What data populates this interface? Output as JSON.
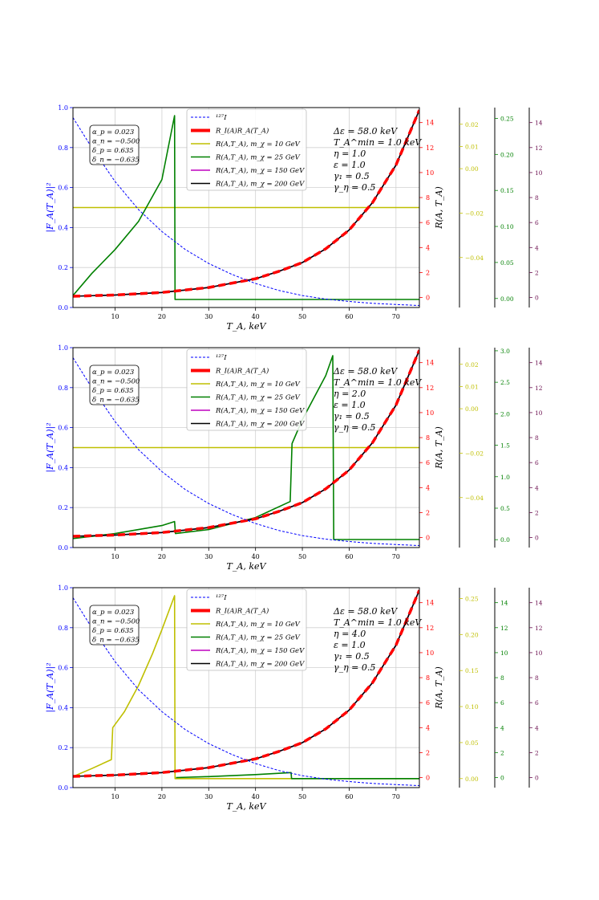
{
  "figure": {
    "legend_labels": [
      "¹²⁷I",
      "R_I(A)R_A(T_A)",
      "R(A,T_A), m_χ = 10 GeV",
      "R(A,T_A), m_χ = 25 GeV",
      "R(A,T_A), m_χ = 150 GeV",
      "R(A,T_A), m_χ = 200 GeV"
    ],
    "legend_colors": [
      "#0000ff",
      "#ff0000",
      "#bfbf00",
      "#008000",
      "#bf00bf",
      "#000000"
    ]
  },
  "chart_data": [
    {
      "type": "line",
      "xlabel": "T_A, keV",
      "ylabel_left": "|F_A(T_A)|²",
      "ylabel_right": "R(A, T_A)",
      "xlim": [
        1,
        75
      ],
      "ylim_left": [
        0,
        1.0
      ],
      "ylim_right": [
        -0.8,
        15.2
      ],
      "grid": true,
      "legend_location": "top-center",
      "params_box": [
        "α_p = 0.023",
        "α_n = −0.500",
        "δ_p = 0.635",
        "δ_n = −0.635"
      ],
      "annotations": [
        "Δε = 58.0 keV",
        "T_A^min = 1.0 keV",
        "η = 1.0",
        "ε = 1.0",
        "γ₁ = 0.5",
        "γ_η = 0.5"
      ],
      "x_ticks": [
        10,
        20,
        30,
        40,
        50,
        60,
        70
      ],
      "left_ticks": [
        0.0,
        0.2,
        0.4,
        0.6,
        0.8,
        1.0
      ],
      "right_ticks": [
        0,
        2,
        4,
        6,
        8,
        10,
        12,
        14
      ],
      "extra_axes": [
        {
          "color": "#bfbf00",
          "ticks": [
            "0.01",
            "0.02",
            "0.00",
            "−0.02",
            "−0.04"
          ],
          "values": [
            0.01,
            0.02,
            0.0,
            -0.02,
            -0.04
          ],
          "range": [
            -0.0625,
            0.0275
          ]
        },
        {
          "color": "#008000",
          "ticks": [
            "0.25",
            "0.20",
            "0.15",
            "0.10",
            "0.05",
            "0.00"
          ],
          "values": [
            0.25,
            0.2,
            0.15,
            0.1,
            0.05,
            0.0
          ],
          "range": [
            -0.0125,
            0.265
          ]
        },
        {
          "color": "#6b0f4f",
          "ticks": [
            "14",
            "12",
            "10",
            "8",
            "6",
            "4",
            "2",
            "0"
          ],
          "values": [
            14,
            12,
            10,
            8,
            6,
            4,
            2,
            0
          ],
          "range": [
            -0.8,
            15.2
          ]
        }
      ],
      "series": [
        {
          "name": "¹²⁷I",
          "style": "form_factor",
          "x": [
            1,
            5,
            10,
            15,
            20,
            25,
            30,
            35,
            40,
            45,
            50,
            55,
            60,
            65,
            70,
            75
          ],
          "y": [
            0.95,
            0.8,
            0.63,
            0.49,
            0.38,
            0.29,
            0.22,
            0.165,
            0.12,
            0.085,
            0.06,
            0.042,
            0.03,
            0.021,
            0.015,
            0.01
          ]
        },
        {
          "name": "R_I(A)R_A(T_A)",
          "style": "rate",
          "x": [
            1,
            10,
            20,
            30,
            40,
            45,
            50,
            55,
            60,
            65,
            70,
            75
          ],
          "y": [
            0.1,
            0.2,
            0.4,
            0.8,
            1.5,
            2.1,
            2.8,
            3.9,
            5.4,
            7.6,
            10.6,
            15.0
          ]
        },
        {
          "name": "R(A,T_A), m_χ = 10 GeV",
          "style": "yellow",
          "x": [
            1,
            75
          ],
          "y": [
            0.5,
            0.5
          ]
        },
        {
          "name": "R(A,T_A), m_χ = 25 GeV",
          "style": "green",
          "x": [
            1,
            5,
            10,
            15,
            20,
            22.7,
            22.8,
            23,
            75
          ],
          "y": [
            0.06,
            0.17,
            0.29,
            0.43,
            0.64,
            0.96,
            0.04,
            0.04,
            0.04
          ]
        },
        {
          "name": "R(A,T_A), m_χ = 150 GeV",
          "style": "magenta",
          "x": [
            1,
            10,
            20,
            30,
            40,
            45,
            50,
            55,
            60,
            65,
            70,
            75
          ],
          "y": [
            0.1,
            0.2,
            0.4,
            0.8,
            1.5,
            2.1,
            2.8,
            3.9,
            5.4,
            7.6,
            10.6,
            15.0
          ]
        },
        {
          "name": "R(A,T_A), m_χ = 200 GeV",
          "style": "black",
          "x": [
            1,
            10,
            20,
            30,
            40,
            45,
            50,
            55,
            60,
            65,
            70,
            75
          ],
          "y": [
            0.1,
            0.2,
            0.4,
            0.8,
            1.5,
            2.1,
            2.8,
            3.9,
            5.4,
            7.6,
            10.6,
            15.0
          ]
        }
      ]
    },
    {
      "type": "line",
      "xlabel": "T_A, keV",
      "ylabel_left": "|F_A(T_A)|²",
      "ylabel_right": "R(A, T_A)",
      "xlim": [
        1,
        75
      ],
      "ylim_left": [
        0,
        1.0
      ],
      "ylim_right": [
        -0.8,
        15.2
      ],
      "grid": true,
      "legend_location": "top-center",
      "params_box": [
        "α_p = 0.023",
        "α_n = −0.500",
        "δ_p = 0.635",
        "δ_n = −0.635"
      ],
      "annotations": [
        "Δε = 58.0 keV",
        "T_A^min = 1.0 keV",
        "η = 2.0",
        "ε = 1.0",
        "γ₁ = 0.5",
        "γ_η = 0.5"
      ],
      "x_ticks": [
        10,
        20,
        30,
        40,
        50,
        60,
        70
      ],
      "left_ticks": [
        0.0,
        0.2,
        0.4,
        0.6,
        0.8,
        1.0
      ],
      "right_ticks": [
        0,
        2,
        4,
        6,
        8,
        10,
        12,
        14
      ],
      "extra_axes": [
        {
          "color": "#bfbf00",
          "ticks": [
            "0.01",
            "0.02",
            "0.00",
            "−0.02",
            "−0.04"
          ],
          "values": [
            0.01,
            0.02,
            0.0,
            -0.02,
            -0.04
          ],
          "range": [
            -0.0625,
            0.0275
          ]
        },
        {
          "color": "#008000",
          "ticks": [
            "3.0",
            "2.5",
            "2.0",
            "1.5",
            "1.0",
            "0.5",
            "0.0"
          ],
          "values": [
            3.0,
            2.5,
            2.0,
            1.5,
            1.0,
            0.5,
            0.0
          ],
          "range": [
            -0.125,
            3.05
          ]
        },
        {
          "color": "#6b0f4f",
          "ticks": [
            "14",
            "12",
            "10",
            "8",
            "6",
            "4",
            "2",
            "0"
          ],
          "values": [
            14,
            12,
            10,
            8,
            6,
            4,
            2,
            0
          ],
          "range": [
            -0.8,
            15.2
          ]
        }
      ],
      "series": [
        {
          "name": "¹²⁷I",
          "style": "form_factor",
          "x": [
            1,
            5,
            10,
            15,
            20,
            25,
            30,
            35,
            40,
            45,
            50,
            55,
            60,
            65,
            70,
            75
          ],
          "y": [
            0.95,
            0.8,
            0.63,
            0.49,
            0.38,
            0.29,
            0.22,
            0.165,
            0.12,
            0.085,
            0.06,
            0.042,
            0.03,
            0.021,
            0.015,
            0.01
          ]
        },
        {
          "name": "R_I(A)R_A(T_A)",
          "style": "rate",
          "x": [
            1,
            10,
            20,
            30,
            40,
            45,
            50,
            55,
            60,
            65,
            70,
            75
          ],
          "y": [
            0.1,
            0.2,
            0.4,
            0.8,
            1.5,
            2.1,
            2.8,
            3.9,
            5.4,
            7.6,
            10.6,
            15.0
          ]
        },
        {
          "name": "R(A,T_A), m_χ = 10 GeV",
          "style": "yellow",
          "x": [
            1,
            75
          ],
          "y": [
            0.5,
            0.5
          ]
        },
        {
          "name": "R(A,T_A), m_χ = 25 GeV",
          "style": "green",
          "x": [
            1,
            10,
            20,
            22.7,
            22.9,
            30,
            40,
            47.4,
            47.8,
            50,
            55,
            56.5,
            56.7,
            75
          ],
          "y": [
            0.045,
            0.07,
            0.11,
            0.13,
            0.07,
            0.09,
            0.15,
            0.23,
            0.52,
            0.64,
            0.86,
            0.96,
            0.04,
            0.04
          ]
        },
        {
          "name": "R(A,T_A), m_χ = 150 GeV",
          "style": "magenta",
          "x": [
            1,
            10,
            20,
            30,
            40,
            45,
            50,
            55,
            60,
            65,
            70,
            75
          ],
          "y": [
            0.1,
            0.2,
            0.4,
            0.8,
            1.5,
            2.1,
            2.8,
            3.9,
            5.4,
            7.6,
            10.6,
            15.0
          ]
        },
        {
          "name": "R(A,T_A), m_χ = 200 GeV",
          "style": "black",
          "x": [
            1,
            10,
            20,
            30,
            40,
            45,
            50,
            55,
            60,
            65,
            70,
            75
          ],
          "y": [
            0.1,
            0.2,
            0.4,
            0.8,
            1.5,
            2.1,
            2.8,
            3.9,
            5.4,
            7.6,
            10.6,
            15.0
          ]
        }
      ]
    },
    {
      "type": "line",
      "xlabel": "T_A, keV",
      "ylabel_left": "|F_A(T_A)|²",
      "ylabel_right": "R(A, T_A)",
      "xlim": [
        1,
        75
      ],
      "ylim_left": [
        0,
        1.0
      ],
      "ylim_right": [
        -0.8,
        15.2
      ],
      "grid": true,
      "legend_location": "top-center",
      "params_box": [
        "α_p = 0.023",
        "α_n = −0.500",
        "δ_p = 0.635",
        "δ_n = −0.635"
      ],
      "annotations": [
        "Δε = 58.0 keV",
        "T_A^min = 1.0 keV",
        "η = 4.0",
        "ε = 1.0",
        "γ₁ = 0.5",
        "γ_η = 0.5"
      ],
      "x_ticks": [
        10,
        20,
        30,
        40,
        50,
        60,
        70
      ],
      "left_ticks": [
        0.0,
        0.2,
        0.4,
        0.6,
        0.8,
        1.0
      ],
      "right_ticks": [
        0,
        2,
        4,
        6,
        8,
        10,
        12,
        14
      ],
      "extra_axes": [
        {
          "color": "#bfbf00",
          "ticks": [
            "0.25",
            "0.20",
            "0.15",
            "0.10",
            "0.05",
            "0.00"
          ],
          "values": [
            0.25,
            0.2,
            0.15,
            0.1,
            0.05,
            0.0
          ],
          "range": [
            -0.0125,
            0.265
          ]
        },
        {
          "color": "#008000",
          "ticks": [
            "14",
            "12",
            "10",
            "8",
            "6",
            "4",
            "2",
            "0"
          ],
          "values": [
            14,
            12,
            10,
            8,
            6,
            4,
            2,
            0
          ],
          "range": [
            -0.8,
            15.2
          ]
        },
        {
          "color": "#6b0f4f",
          "ticks": [
            "14",
            "12",
            "10",
            "8",
            "6",
            "4",
            "2",
            "0"
          ],
          "values": [
            14,
            12,
            10,
            8,
            6,
            4,
            2,
            0
          ],
          "range": [
            -0.8,
            15.2
          ]
        }
      ],
      "series": [
        {
          "name": "¹²⁷I",
          "style": "form_factor",
          "x": [
            1,
            5,
            10,
            15,
            20,
            25,
            30,
            35,
            40,
            45,
            50,
            55,
            60,
            65,
            70,
            75
          ],
          "y": [
            0.95,
            0.8,
            0.63,
            0.49,
            0.38,
            0.29,
            0.22,
            0.165,
            0.12,
            0.085,
            0.06,
            0.042,
            0.03,
            0.021,
            0.015,
            0.01
          ]
        },
        {
          "name": "R_I(A)R_A(T_A)",
          "style": "rate",
          "x": [
            1,
            10,
            20,
            30,
            40,
            45,
            50,
            55,
            60,
            65,
            70,
            75
          ],
          "y": [
            0.1,
            0.2,
            0.4,
            0.8,
            1.5,
            2.1,
            2.8,
            3.9,
            5.4,
            7.6,
            10.6,
            15.0
          ]
        },
        {
          "name": "R(A,T_A), m_χ = 10 GeV",
          "style": "yellow",
          "x": [
            1,
            5,
            9.2,
            9.5,
            12,
            15,
            18,
            20,
            22.7,
            22.8,
            23,
            75
          ],
          "y": [
            0.055,
            0.095,
            0.14,
            0.3,
            0.38,
            0.51,
            0.67,
            0.79,
            0.96,
            0.045,
            0.045,
            0.045
          ]
        },
        {
          "name": "R(A,T_A), m_χ = 25 GeV",
          "style": "green",
          "x": [
            23,
            30,
            40,
            47.6,
            47.7,
            75
          ],
          "y": [
            0.05,
            0.055,
            0.065,
            0.075,
            0.045,
            0.045
          ]
        },
        {
          "name": "R(A,T_A), m_χ = 150 GeV",
          "style": "magenta",
          "x": [
            1,
            10,
            20,
            30,
            40,
            45,
            50,
            55,
            60,
            65,
            70,
            75
          ],
          "y": [
            0.1,
            0.2,
            0.4,
            0.8,
            1.5,
            2.1,
            2.8,
            3.9,
            5.4,
            7.6,
            10.6,
            15.0
          ]
        },
        {
          "name": "R(A,T_A), m_χ = 200 GeV",
          "style": "black",
          "x": [
            1,
            10,
            20,
            30,
            40,
            45,
            50,
            55,
            60,
            65,
            70,
            75
          ],
          "y": [
            0.1,
            0.2,
            0.4,
            0.8,
            1.5,
            2.1,
            2.8,
            3.9,
            5.4,
            7.6,
            10.6,
            15.0
          ]
        }
      ]
    }
  ]
}
